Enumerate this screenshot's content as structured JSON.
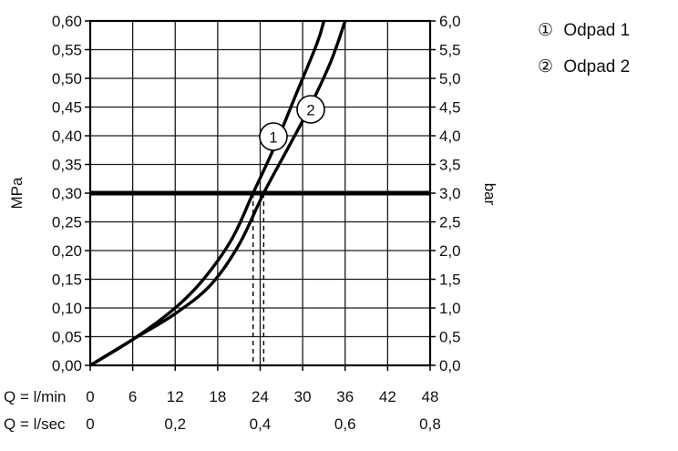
{
  "chart_data": {
    "type": "line",
    "title": "",
    "x_axis": {
      "primary": {
        "prefix": "Q = l/min",
        "min": 0,
        "max": 48,
        "ticks": [
          "0",
          "6",
          "12",
          "18",
          "24",
          "30",
          "36",
          "42",
          "48"
        ]
      },
      "secondary": {
        "prefix": "Q = l/sec",
        "ticks": [
          "0",
          "0,2",
          "0,4",
          "0,6",
          "0,8"
        ],
        "tick_values_lmin": [
          0,
          12,
          24,
          36,
          48
        ]
      }
    },
    "y_axis_left": {
      "label": "MPa",
      "min": 0.0,
      "max": 0.6,
      "ticks": [
        "0,00",
        "0,05",
        "0,10",
        "0,15",
        "0,20",
        "0,25",
        "0,30",
        "0,35",
        "0,40",
        "0,45",
        "0,50",
        "0,55",
        "0,60"
      ]
    },
    "y_axis_right": {
      "label": "bar",
      "ticks": [
        "0,0",
        "0,5",
        "1,0",
        "1,5",
        "2,0",
        "2,5",
        "3,0",
        "3,5",
        "4,0",
        "4,5",
        "5,0",
        "5,5",
        "6,0"
      ]
    },
    "grid": true,
    "reference_line": {
      "y": 0.3
    },
    "series": [
      {
        "name": "Odpad 1",
        "marker": "1",
        "x": [
          0,
          6,
          12,
          16,
          20,
          23,
          26,
          29,
          32,
          33
        ],
        "y": [
          0.0,
          0.045,
          0.1,
          0.15,
          0.22,
          0.3,
          0.38,
          0.47,
          0.56,
          0.6
        ]
      },
      {
        "name": "Odpad 2",
        "marker": "2",
        "x": [
          0,
          6,
          12,
          17,
          21,
          24.5,
          28,
          31,
          34,
          36
        ],
        "y": [
          0.0,
          0.045,
          0.09,
          0.14,
          0.21,
          0.3,
          0.38,
          0.45,
          0.53,
          0.6
        ]
      }
    ],
    "intercepts_at_reference": [
      23,
      24.5
    ],
    "legend": {
      "position": "top-right",
      "items": [
        {
          "symbol": "①",
          "label": "Odpad 1"
        },
        {
          "symbol": "②",
          "label": "Odpad 2"
        }
      ]
    }
  }
}
